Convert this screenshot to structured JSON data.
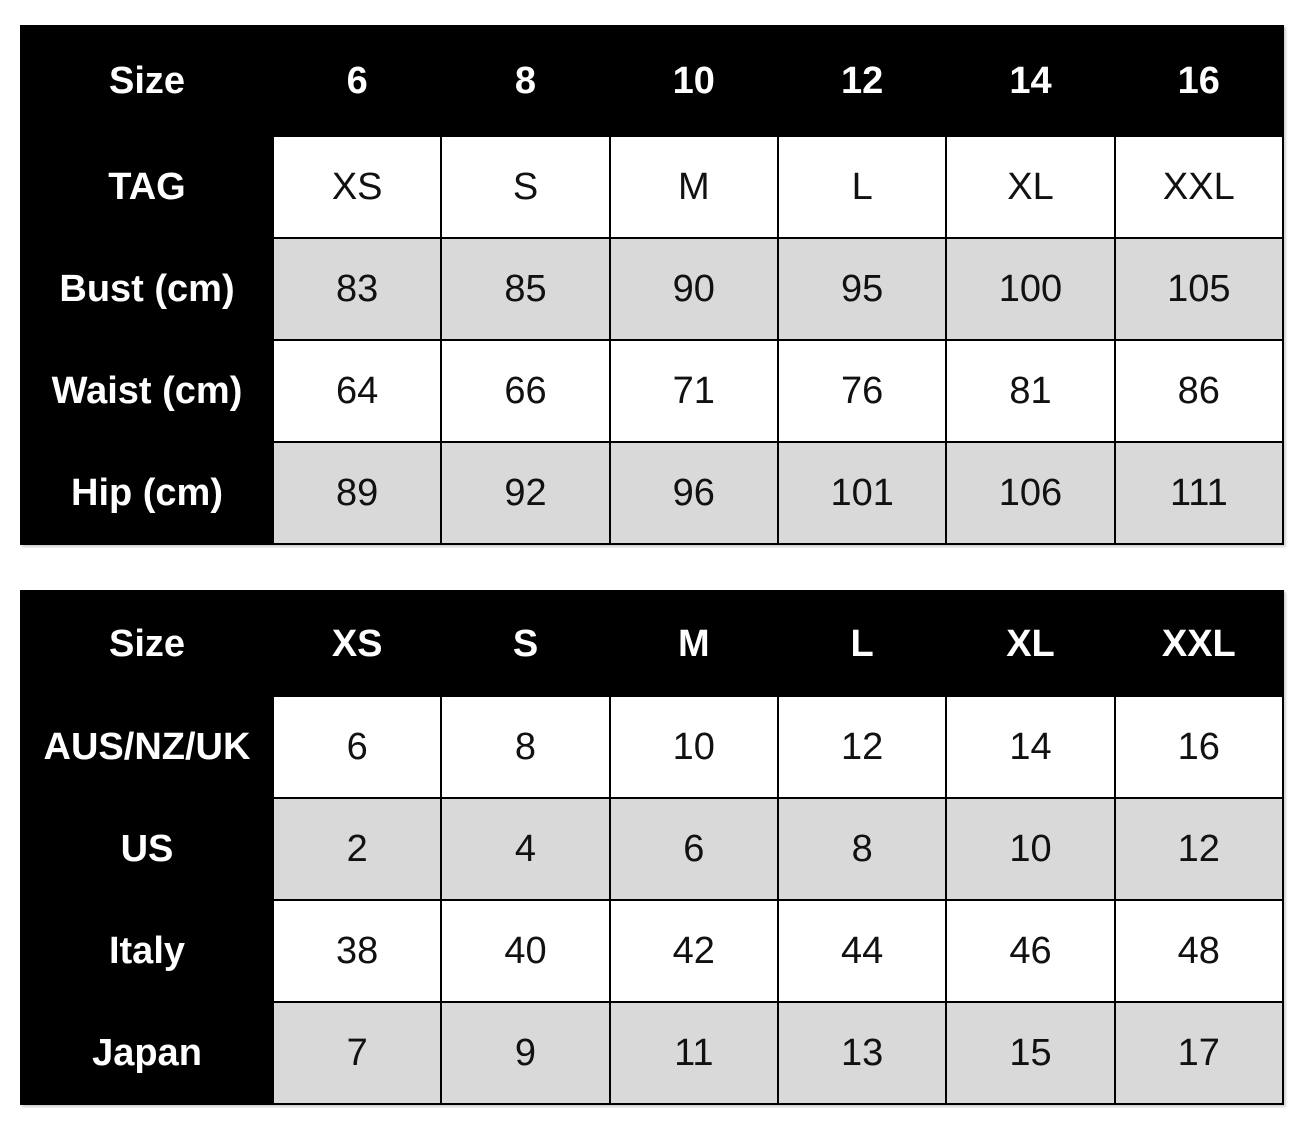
{
  "colors": {
    "header_bg": "#000000",
    "header_text": "#ffffff",
    "stripe_row_bg": "#d9d9d9",
    "plain_row_bg": "#ffffff",
    "border": "#000000"
  },
  "chart_data": [
    {
      "type": "table",
      "columns": [
        "Size",
        "6",
        "8",
        "10",
        "12",
        "14",
        "16"
      ],
      "rows": [
        [
          "TAG",
          "XS",
          "S",
          "M",
          "L",
          "XL",
          "XXL"
        ],
        [
          "Bust (cm)",
          "83",
          "85",
          "90",
          "95",
          "100",
          "105"
        ],
        [
          "Waist (cm)",
          "64",
          "66",
          "71",
          "76",
          "81",
          "86"
        ],
        [
          "Hip (cm)",
          "89",
          "92",
          "96",
          "101",
          "106",
          "111"
        ]
      ]
    },
    {
      "type": "table",
      "columns": [
        "Size",
        "XS",
        "S",
        "M",
        "L",
        "XL",
        "XXL"
      ],
      "rows": [
        [
          "AUS/NZ/UK",
          "6",
          "8",
          "10",
          "12",
          "14",
          "16"
        ],
        [
          "US",
          "2",
          "4",
          "6",
          "8",
          "10",
          "12"
        ],
        [
          "Italy",
          "38",
          "40",
          "42",
          "44",
          "46",
          "48"
        ],
        [
          "Japan",
          "7",
          "9",
          "11",
          "13",
          "15",
          "17"
        ]
      ]
    }
  ]
}
